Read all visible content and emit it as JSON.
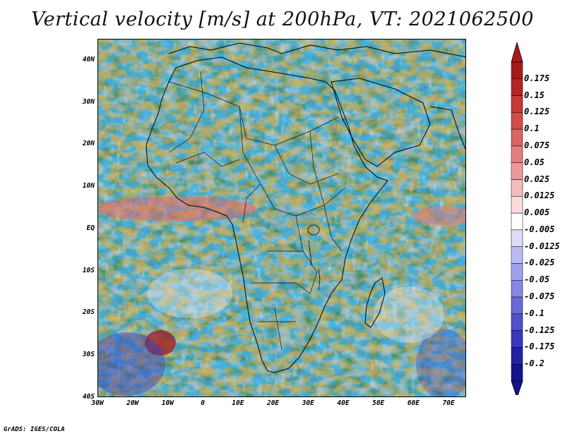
{
  "title": "Vertical velocity [m/s] at 200hPa, VT: 2021062500",
  "credit": "GrADS: IGES/COLA",
  "map": {
    "lon_range": [
      -30,
      75
    ],
    "lat_range": [
      -40,
      45
    ],
    "lat_ticks": [
      {
        "value": 40,
        "label": "40N"
      },
      {
        "value": 30,
        "label": "30N"
      },
      {
        "value": 20,
        "label": "20N"
      },
      {
        "value": 10,
        "label": "10N"
      },
      {
        "value": 0,
        "label": "EQ"
      },
      {
        "value": -10,
        "label": "10S"
      },
      {
        "value": -20,
        "label": "20S"
      },
      {
        "value": -30,
        "label": "30S"
      },
      {
        "value": -40,
        "label": "40S"
      }
    ],
    "lon_ticks": [
      {
        "value": -30,
        "label": "30W"
      },
      {
        "value": -20,
        "label": "20W"
      },
      {
        "value": -10,
        "label": "10W"
      },
      {
        "value": 0,
        "label": "0"
      },
      {
        "value": 10,
        "label": "10E"
      },
      {
        "value": 20,
        "label": "20E"
      },
      {
        "value": 30,
        "label": "30E"
      },
      {
        "value": 40,
        "label": "40E"
      },
      {
        "value": 50,
        "label": "50E"
      },
      {
        "value": 60,
        "label": "60E"
      },
      {
        "value": 70,
        "label": "70E"
      }
    ]
  },
  "colorbar": {
    "levels": [
      "0.175",
      "0.15",
      "0.125",
      "0.1",
      "0.075",
      "0.05",
      "0.025",
      "0.0125",
      "0.005",
      "-0.005",
      "-0.0125",
      "-0.025",
      "-0.05",
      "-0.075",
      "-0.1",
      "-0.125",
      "-0.175",
      "-0.2"
    ],
    "colors": [
      "#a81a1a",
      "#b82424",
      "#c83838",
      "#d24c4c",
      "#dc6464",
      "#e47e7e",
      "#ec9a9a",
      "#f4bcbc",
      "#fadcdc",
      "#ffffff",
      "#dcdcfa",
      "#bcbcf2",
      "#a0a0ec",
      "#8686e4",
      "#6a6ad8",
      "#5050cc",
      "#3838bc",
      "#2222a6",
      "#14148c"
    ],
    "top_color": "#a81a1a",
    "bottom_color": "#14148c"
  }
}
